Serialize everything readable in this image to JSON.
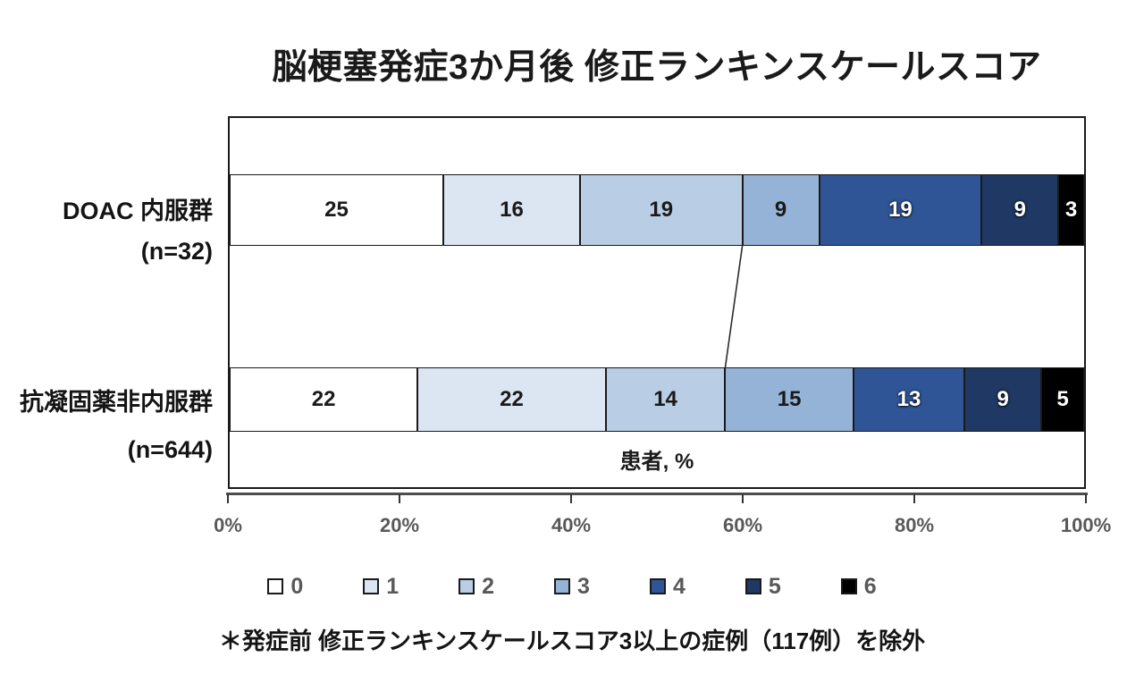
{
  "title": "脳梗塞発症3か月後 修正ランキンスケールスコア",
  "footnote": "＊発症前 修正ランキンスケールスコア3以上の症例（117例）を除外",
  "chart_data": {
    "type": "bar",
    "variant": "horizontal-100pct-stacked",
    "title": "脳梗塞発症3か月後 修正ランキンスケールスコア",
    "inner_axis_label": "患者, %",
    "categories": [
      {
        "label": "DOAC 内服群",
        "sublabel": "(n=32)"
      },
      {
        "label": "抗凝固薬非内服群",
        "sublabel": "(n=644)"
      }
    ],
    "series": [
      {
        "name": "0",
        "color": "#FFFFFF",
        "values": [
          25,
          22
        ]
      },
      {
        "name": "1",
        "color": "#DCE6F2",
        "values": [
          16,
          22
        ]
      },
      {
        "name": "2",
        "color": "#B9CDE4",
        "values": [
          19,
          14
        ]
      },
      {
        "name": "3",
        "color": "#95B3D7",
        "values": [
          9,
          15
        ]
      },
      {
        "name": "4",
        "color": "#2F5597",
        "values": [
          19,
          13
        ]
      },
      {
        "name": "5",
        "color": "#1F3864",
        "values": [
          9,
          9
        ]
      },
      {
        "name": "6",
        "color": "#000000",
        "values": [
          3,
          5
        ]
      }
    ],
    "x_ticks": [
      "0%",
      "20%",
      "40%",
      "60%",
      "80%",
      "100%"
    ],
    "xlim": [
      0,
      100
    ],
    "grid": false,
    "legend_position": "bottom",
    "legend_labels": [
      "0",
      "1",
      "2",
      "3",
      "4",
      "5",
      "6"
    ],
    "connector_line": {
      "bar1_cumulative_pct": 60,
      "bar2_cumulative_pct": 58
    }
  },
  "colors": {
    "segment_border": "#1a1a1a",
    "axis_line": "#4d4d4d",
    "tick_label": "#595959",
    "legend_label": "#595959",
    "text": "#141414"
  }
}
